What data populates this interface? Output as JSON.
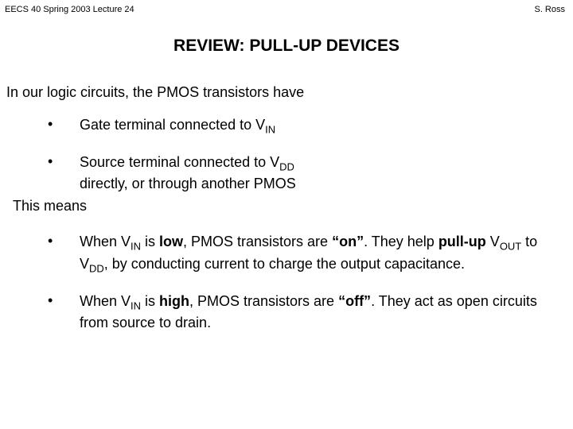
{
  "header": {
    "left": "EECS 40 Spring 2003  Lecture 24",
    "right": "S. Ross"
  },
  "title": "REVIEW:  PULL-UP DEVICES",
  "intro": "In our logic circuits, the PMOS transistors have",
  "bullets_top": {
    "b1_pre": "Gate terminal connected to V",
    "b1_sub": "IN",
    "b2_pre": "Source terminal connected to V",
    "b2_sub": "DD",
    "b2_line2": "directly, or through another PMOS"
  },
  "thismeans": "This means",
  "bullets_bottom": {
    "b3_t1": "When V",
    "b3_sub1": "IN",
    "b3_t2": " is ",
    "b3_bold1": "low",
    "b3_t3": ", PMOS transistors are ",
    "b3_bold2": "“on”",
    "b3_t4": ".  They help ",
    "b3_bold3": "pull-up",
    "b3_t5": " V",
    "b3_sub2": "OUT",
    "b3_t6": " to V",
    "b3_sub3": "DD",
    "b3_t7": ", by conducting current to charge the output capacitance.",
    "b4_t1": "When V",
    "b4_sub1": "IN",
    "b4_t2": " is ",
    "b4_bold1": "high",
    "b4_t3": ", PMOS transistors are ",
    "b4_bold2": "“off”",
    "b4_t4": ".  They act as open circuits from source to drain."
  },
  "colors": {
    "background": "#ffffff",
    "text": "#000000"
  },
  "typography": {
    "header_fontsize": 11,
    "title_fontsize": 21,
    "body_fontsize": 18,
    "font_family": "Arial"
  }
}
